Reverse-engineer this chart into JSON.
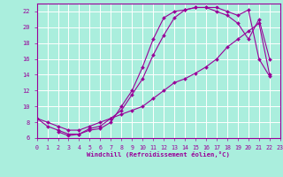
{
  "bg_color": "#aaeedd",
  "line_color": "#990099",
  "grid_color": "#ffffff",
  "xlabel": "Windchill (Refroidissement éolien,°C)",
  "xlim": [
    0,
    23
  ],
  "ylim": [
    6,
    23
  ],
  "yticks": [
    6,
    8,
    10,
    12,
    14,
    16,
    18,
    20,
    22
  ],
  "xticks": [
    0,
    1,
    2,
    3,
    4,
    5,
    6,
    7,
    8,
    9,
    10,
    11,
    12,
    13,
    14,
    15,
    16,
    17,
    18,
    19,
    20,
    21,
    22,
    23
  ],
  "curve1_x": [
    0,
    1,
    2,
    3,
    4,
    5,
    6,
    7,
    8,
    9,
    10,
    11,
    12,
    13,
    14,
    15,
    16,
    17,
    18,
    19,
    20,
    21,
    22
  ],
  "curve1_y": [
    8.5,
    7.5,
    7.0,
    6.5,
    6.5,
    7.0,
    7.2,
    8.0,
    10.0,
    12.0,
    15.0,
    18.5,
    21.2,
    22.0,
    22.2,
    22.5,
    22.5,
    22.5,
    22.0,
    21.5,
    22.2,
    16.0,
    13.8
  ],
  "curve2_x": [
    2,
    3,
    4,
    5,
    6,
    7,
    8,
    9,
    10,
    11,
    12,
    13,
    14,
    15,
    16,
    17,
    18,
    19,
    20,
    21,
    22
  ],
  "curve2_y": [
    6.8,
    6.3,
    6.5,
    7.2,
    7.5,
    8.5,
    9.5,
    11.5,
    13.5,
    16.5,
    19.0,
    21.2,
    22.2,
    22.5,
    22.5,
    22.0,
    21.5,
    20.5,
    18.5,
    21.0,
    16.0
  ],
  "curve3_x": [
    0,
    1,
    2,
    3,
    4,
    5,
    6,
    7,
    8,
    9,
    10,
    11,
    12,
    13,
    14,
    15,
    16,
    17,
    18,
    19,
    20,
    21,
    22
  ],
  "curve3_y": [
    8.5,
    8.0,
    7.5,
    7.0,
    7.0,
    7.5,
    8.0,
    8.5,
    9.0,
    9.5,
    10.0,
    11.0,
    12.0,
    13.0,
    13.5,
    14.2,
    15.0,
    16.0,
    17.5,
    18.5,
    19.5,
    20.5,
    14.0
  ]
}
